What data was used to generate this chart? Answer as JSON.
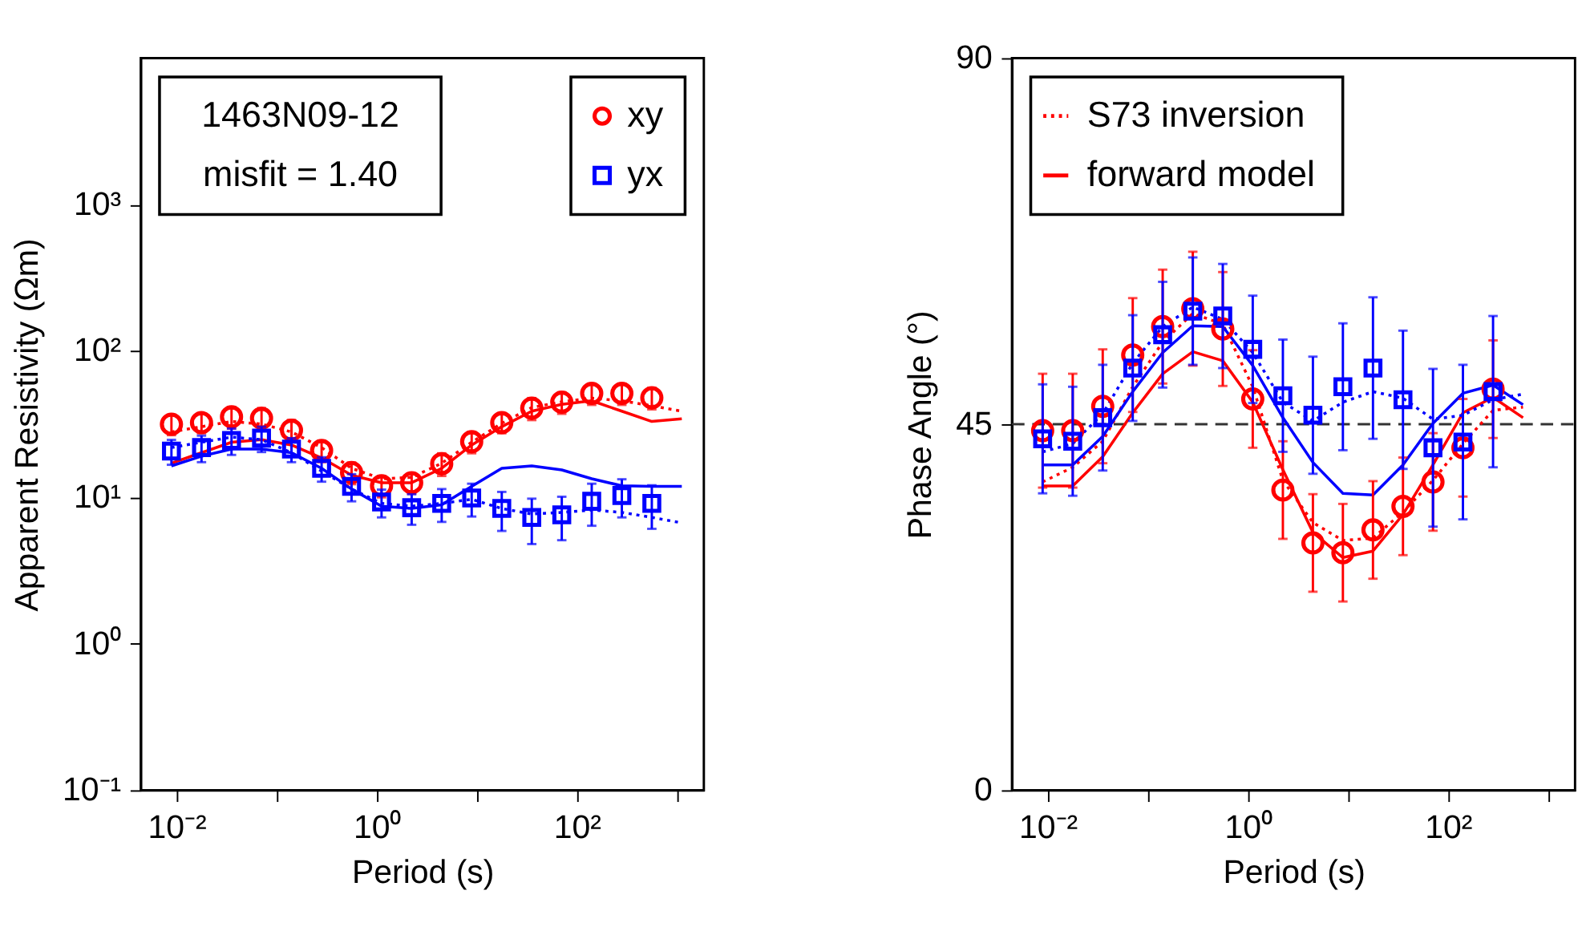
{
  "chart_data": [
    {
      "type": "scatter",
      "ylabel": "Apparent Resistivity (Ωm)",
      "xlabel": "Period (s)",
      "log": "xy",
      "grid": false,
      "legend": "top right",
      "annotations": [
        "1463N09-12",
        "misfit = 1.40"
      ],
      "xlim": [
        0.0044,
        1860
      ],
      "ylim": [
        0.1,
        10000
      ],
      "xticks": [
        {
          "value": 0.01,
          "label": "10⁻²"
        },
        {
          "value": 0.1,
          "label": null
        },
        {
          "value": 1,
          "label": "10⁰"
        },
        {
          "value": 10,
          "label": null
        },
        {
          "value": 100,
          "label": "10²"
        },
        {
          "value": 1000,
          "label": null
        }
      ],
      "yticks": [
        {
          "value": 0.1,
          "label": "10⁻¹"
        },
        {
          "value": 1,
          "label": "10⁰"
        },
        {
          "value": 10,
          "label": "10¹"
        },
        {
          "value": 100,
          "label": "10²"
        },
        {
          "value": 1000,
          "label": "10³"
        }
      ],
      "series": [
        {
          "type": "line",
          "color": "#ff0000",
          "line_style": "solid",
          "x": [
            0.00891,
            0.0178,
            0.0355,
            0.0708,
            0.141,
            0.282,
            0.562,
            1.12,
            2.24,
            4.47,
            8.91,
            17.8,
            35.5,
            70.8,
            141,
            282,
            562,
            1120
          ],
          "values": [
            17.1,
            20.2,
            23.8,
            24.8,
            22.8,
            18.6,
            14.2,
            12.6,
            12.6,
            15.8,
            22.8,
            30.4,
            38.8,
            43.2,
            45.7,
            38.8,
            33.0,
            34.4
          ]
        },
        {
          "type": "line",
          "color": "#ff0000",
          "line_style": "dotted",
          "x": [
            0.00891,
            0.0178,
            0.0355,
            0.0708,
            0.141,
            0.282,
            0.562,
            1.12,
            2.24,
            4.47,
            8.91,
            17.8,
            35.5,
            70.8,
            141,
            282,
            562,
            1120
          ],
          "values": [
            28.0,
            30.4,
            33.0,
            31.7,
            28.0,
            21.9,
            15.8,
            13.4,
            13.7,
            17.1,
            23.8,
            32.1,
            41.1,
            45.0,
            47.6,
            45.7,
            42.2,
            38.8
          ]
        },
        {
          "type": "line",
          "color": "#0000ff",
          "line_style": "solid",
          "x": [
            0.00891,
            0.0178,
            0.0355,
            0.0708,
            0.141,
            0.282,
            0.562,
            1.12,
            2.24,
            4.47,
            8.91,
            17.8,
            35.5,
            70.8,
            141,
            282,
            562,
            1120
          ],
          "values": [
            16.4,
            19.1,
            21.4,
            21.4,
            20.2,
            15.8,
            11.4,
            8.7,
            8.4,
            8.9,
            11.9,
            15.8,
            16.4,
            15.4,
            13.4,
            12.0,
            11.9,
            11.9
          ]
        },
        {
          "type": "line",
          "color": "#0000ff",
          "line_style": "dotted",
          "x": [
            0.00891,
            0.0178,
            0.0355,
            0.0708,
            0.141,
            0.282,
            0.562,
            1.12,
            2.24,
            4.47,
            8.91,
            17.8,
            35.5,
            70.8,
            141,
            282,
            562,
            1120
          ],
          "values": [
            21.9,
            23.8,
            25.8,
            24.8,
            20.2,
            15.1,
            11.4,
            9.1,
            8.7,
            9.1,
            9.7,
            8.4,
            7.7,
            7.9,
            8.2,
            7.9,
            7.3,
            6.7
          ]
        },
        {
          "name": "xy",
          "color": "#ff0000",
          "marker": "circle",
          "x": [
            0.00891,
            0.0178,
            0.0355,
            0.0708,
            0.141,
            0.282,
            0.562,
            1.12,
            2.24,
            4.47,
            8.91,
            17.8,
            35.5,
            70.8,
            141,
            282,
            562
          ],
          "values": [
            31.6,
            32.4,
            35.5,
            34.7,
            28.8,
            20.9,
            14.8,
            12.0,
            12.6,
            17.0,
            24.0,
            32.4,
            40.7,
            44.7,
            51.3,
            51.3,
            47.9
          ],
          "errors": [
            5,
            5,
            6,
            6,
            5,
            3.5,
            2.5,
            2,
            2,
            3,
            4,
            5,
            7,
            7.5,
            8.5,
            8.5,
            8
          ]
        },
        {
          "name": "yx",
          "color": "#0000ff",
          "marker": "square",
          "x": [
            0.00891,
            0.0178,
            0.0355,
            0.0708,
            0.141,
            0.282,
            0.562,
            1.12,
            2.24,
            4.47,
            8.91,
            17.8,
            35.5,
            70.8,
            141,
            282,
            562
          ],
          "values": [
            20.7,
            21.9,
            24.5,
            25.4,
            21.4,
            15.8,
            11.9,
            9.3,
            8.5,
            9.1,
            9.9,
            8.4,
            7.3,
            7.6,
            9.4,
            10.3,
            9.1
          ],
          "errors": [
            4,
            4.5,
            5,
            5,
            4,
            3,
            2.5,
            2,
            2,
            2.3,
            2.5,
            2.5,
            2.5,
            2.5,
            3,
            3,
            3
          ]
        }
      ]
    },
    {
      "type": "scatter",
      "ylabel": "Phase Angle (°)",
      "xlabel": "Period (s)",
      "log": "x",
      "grid": false,
      "legend": "top left",
      "xlim": [
        0.0044,
        1860
      ],
      "ylim": [
        0,
        90
      ],
      "xticks": [
        {
          "value": 0.01,
          "label": "10⁻²"
        },
        {
          "value": 0.1,
          "label": null
        },
        {
          "value": 1,
          "label": "10⁰"
        },
        {
          "value": 10,
          "label": null
        },
        {
          "value": 100,
          "label": "10²"
        },
        {
          "value": 1000,
          "label": null
        }
      ],
      "yticks": [
        0,
        45,
        90
      ],
      "ref_lines": [
        {
          "axis": "y",
          "value": 45,
          "color": "#333333",
          "line_style": "dashed"
        }
      ],
      "series": [
        {
          "type": "line",
          "name": "S73 inversion",
          "color": "#ff0000",
          "line_style": "dotted",
          "x": [
            0.00891,
            0.0178,
            0.0355,
            0.0708,
            0.141,
            0.282,
            0.562,
            1.12,
            2.24,
            4.47,
            8.91,
            17.8,
            35.5,
            70.8,
            141,
            282,
            562
          ],
          "values": [
            37.9,
            39.7,
            42.9,
            49.6,
            55.1,
            58.6,
            57.3,
            49.6,
            38.1,
            32.9,
            30.7,
            31.0,
            34.2,
            38.1,
            42.6,
            46.7,
            47.1
          ]
        },
        {
          "type": "line",
          "name": "forward model",
          "color": "#ff0000",
          "line_style": "solid",
          "x": [
            0.00891,
            0.0178,
            0.0355,
            0.0708,
            0.141,
            0.282,
            0.562,
            1.12,
            2.24,
            4.47,
            8.91,
            17.8,
            35.5,
            70.8,
            141,
            282,
            562
          ],
          "values": [
            37.4,
            37.4,
            41.0,
            46.4,
            51.2,
            53.9,
            52.8,
            47.7,
            39.4,
            31.7,
            28.6,
            29.4,
            33.9,
            40.0,
            46.4,
            48.3,
            45.8
          ]
        },
        {
          "type": "line",
          "color": "#0000ff",
          "line_style": "solid",
          "x": [
            0.00891,
            0.0178,
            0.0355,
            0.0708,
            0.141,
            0.282,
            0.562,
            1.12,
            2.24,
            4.47,
            8.91,
            17.8,
            35.5,
            70.8,
            141,
            282,
            562
          ],
          "values": [
            40.0,
            40.0,
            43.5,
            49.0,
            53.8,
            57.1,
            57.0,
            52.2,
            45.8,
            40.3,
            36.5,
            36.3,
            40.0,
            45.1,
            48.8,
            49.8,
            47.4
          ]
        },
        {
          "type": "line",
          "color": "#0000ff",
          "line_style": "dotted",
          "x": [
            0.00891,
            0.0178,
            0.0355,
            0.0708,
            0.141,
            0.282,
            0.562,
            1.12,
            2.24,
            4.47,
            8.91,
            17.8,
            35.5,
            70.8,
            141,
            282,
            562
          ],
          "values": [
            41.6,
            42.6,
            46.3,
            52.5,
            57.0,
            59.4,
            57.9,
            53.8,
            47.7,
            45.4,
            47.7,
            49.0,
            48.2,
            45.6,
            46.1,
            48.0,
            48.7
          ]
        },
        {
          "color": "#ff0000",
          "marker": "circle",
          "x": [
            0.00891,
            0.0178,
            0.0355,
            0.0708,
            0.141,
            0.282,
            0.562,
            1.12,
            2.24,
            4.47,
            8.91,
            17.8,
            35.5,
            70.8,
            141,
            282
          ],
          "values": [
            44.2,
            44.2,
            47.2,
            53.5,
            57.0,
            59.2,
            56.7,
            48.1,
            36.9,
            30.4,
            29.2,
            32.0,
            34.9,
            37.9,
            42.1,
            49.3
          ],
          "errors": [
            7,
            7,
            7,
            7,
            7,
            7,
            7,
            6,
            6,
            6,
            6,
            6,
            6,
            6,
            6,
            6
          ]
        },
        {
          "color": "#0000ff",
          "marker": "square",
          "x": [
            0.00891,
            0.0178,
            0.0355,
            0.0708,
            0.141,
            0.282,
            0.562,
            1.12,
            2.24,
            4.47,
            8.91,
            17.8,
            35.5,
            70.8,
            141,
            282
          ],
          "values": [
            43.2,
            42.9,
            45.8,
            51.9,
            56.0,
            58.9,
            58.3,
            54.2,
            48.5,
            46.1,
            49.6,
            51.9,
            48.0,
            42.1,
            42.8,
            49.0
          ],
          "errors": [
            6.7,
            6.7,
            6.5,
            6.5,
            6.5,
            6.6,
            6.4,
            6.6,
            6.9,
            7.2,
            7.8,
            8.7,
            8.5,
            9.7,
            9.5,
            9.3
          ]
        }
      ]
    }
  ]
}
